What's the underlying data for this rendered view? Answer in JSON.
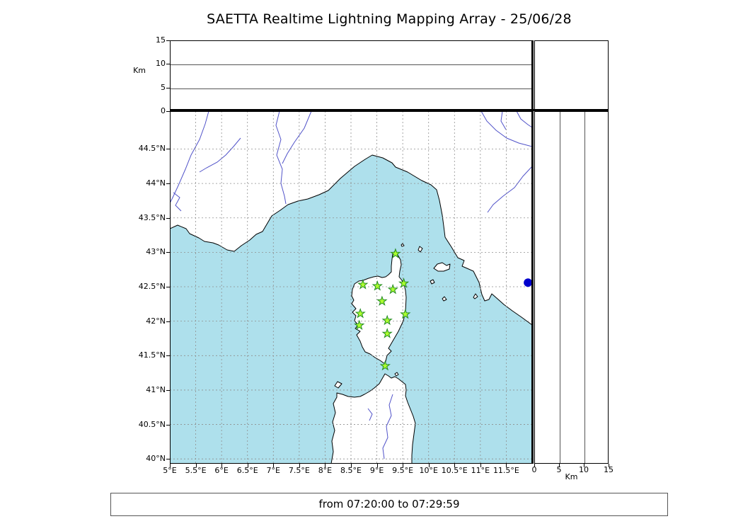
{
  "title": "SAETTA Realtime Lightning Mapping Array - 25/06/28",
  "status_bar": {
    "text": "from 07:20:00 to 07:29:59"
  },
  "altitude_panel": {
    "unit_label": "Km",
    "ticks": [
      15,
      10,
      5,
      0
    ],
    "range_km": [
      0,
      15
    ],
    "gridlines_km": [
      5,
      10
    ]
  },
  "right_panel": {
    "unit_label": "Km",
    "ticks": [
      0,
      5,
      10,
      15
    ],
    "range_km": [
      0,
      15
    ],
    "gridlines_km": [
      5,
      10
    ]
  },
  "map": {
    "lon_min": 5.0,
    "lon_max": 12.0,
    "lat_min": 39.93,
    "lat_max": 45.05,
    "lat_ticks": [
      {
        "label": "44.5°N",
        "value": 44.5
      },
      {
        "label": "44°N",
        "value": 44.0
      },
      {
        "label": "43.5°N",
        "value": 43.5
      },
      {
        "label": "43°N",
        "value": 43.0
      },
      {
        "label": "42.5°N",
        "value": 42.5
      },
      {
        "label": "42°N",
        "value": 42.0
      },
      {
        "label": "41.5°N",
        "value": 41.5
      },
      {
        "label": "41°N",
        "value": 41.0
      },
      {
        "label": "40.5°N",
        "value": 40.5
      },
      {
        "label": "40°N",
        "value": 40.0
      }
    ],
    "lon_ticks": [
      {
        "label": "5°E",
        "value": 5.0
      },
      {
        "label": "5.5°E",
        "value": 5.5
      },
      {
        "label": "6°E",
        "value": 6.0
      },
      {
        "label": "6.5°E",
        "value": 6.5
      },
      {
        "label": "7°E",
        "value": 7.0
      },
      {
        "label": "7.5°E",
        "value": 7.5
      },
      {
        "label": "8°E",
        "value": 8.0
      },
      {
        "label": "8.5°E",
        "value": 8.5
      },
      {
        "label": "9°E",
        "value": 9.0
      },
      {
        "label": "9.5°E",
        "value": 9.5
      },
      {
        "label": "10°E",
        "value": 10.0
      },
      {
        "label": "10.5°E",
        "value": 10.5
      },
      {
        "label": "11°E",
        "value": 11.0
      },
      {
        "label": "11.5°E",
        "value": 11.5
      }
    ],
    "grid_lon": [
      5.5,
      6,
      6.5,
      7,
      7.5,
      8,
      8.5,
      9,
      9.5,
      10,
      10.5,
      11,
      11.5
    ],
    "grid_lat": [
      40,
      40.5,
      41,
      41.5,
      42,
      42.5,
      43,
      43.5,
      44,
      44.5
    ],
    "colors": {
      "sea": "#aee0ec",
      "land": "#ffffff",
      "coast": "#000000",
      "river": "#5153c9",
      "grid": "#8f8f8f",
      "station_fill": "#adff2f",
      "station_edge": "#228b22",
      "event_dot": "#0000cd"
    },
    "stations": [
      {
        "lon": 9.36,
        "lat": 42.98
      },
      {
        "lon": 8.73,
        "lat": 42.53
      },
      {
        "lon": 9.01,
        "lat": 42.51
      },
      {
        "lon": 9.31,
        "lat": 42.46
      },
      {
        "lon": 9.52,
        "lat": 42.55
      },
      {
        "lon": 9.1,
        "lat": 42.29
      },
      {
        "lon": 8.68,
        "lat": 42.11
      },
      {
        "lon": 9.55,
        "lat": 42.1
      },
      {
        "lon": 8.66,
        "lat": 41.94
      },
      {
        "lon": 9.2,
        "lat": 42.01
      },
      {
        "lon": 9.2,
        "lat": 41.82
      },
      {
        "lon": 9.16,
        "lat": 41.35
      }
    ],
    "event_dot": {
      "lon": 11.92,
      "lat": 42.56
    }
  }
}
